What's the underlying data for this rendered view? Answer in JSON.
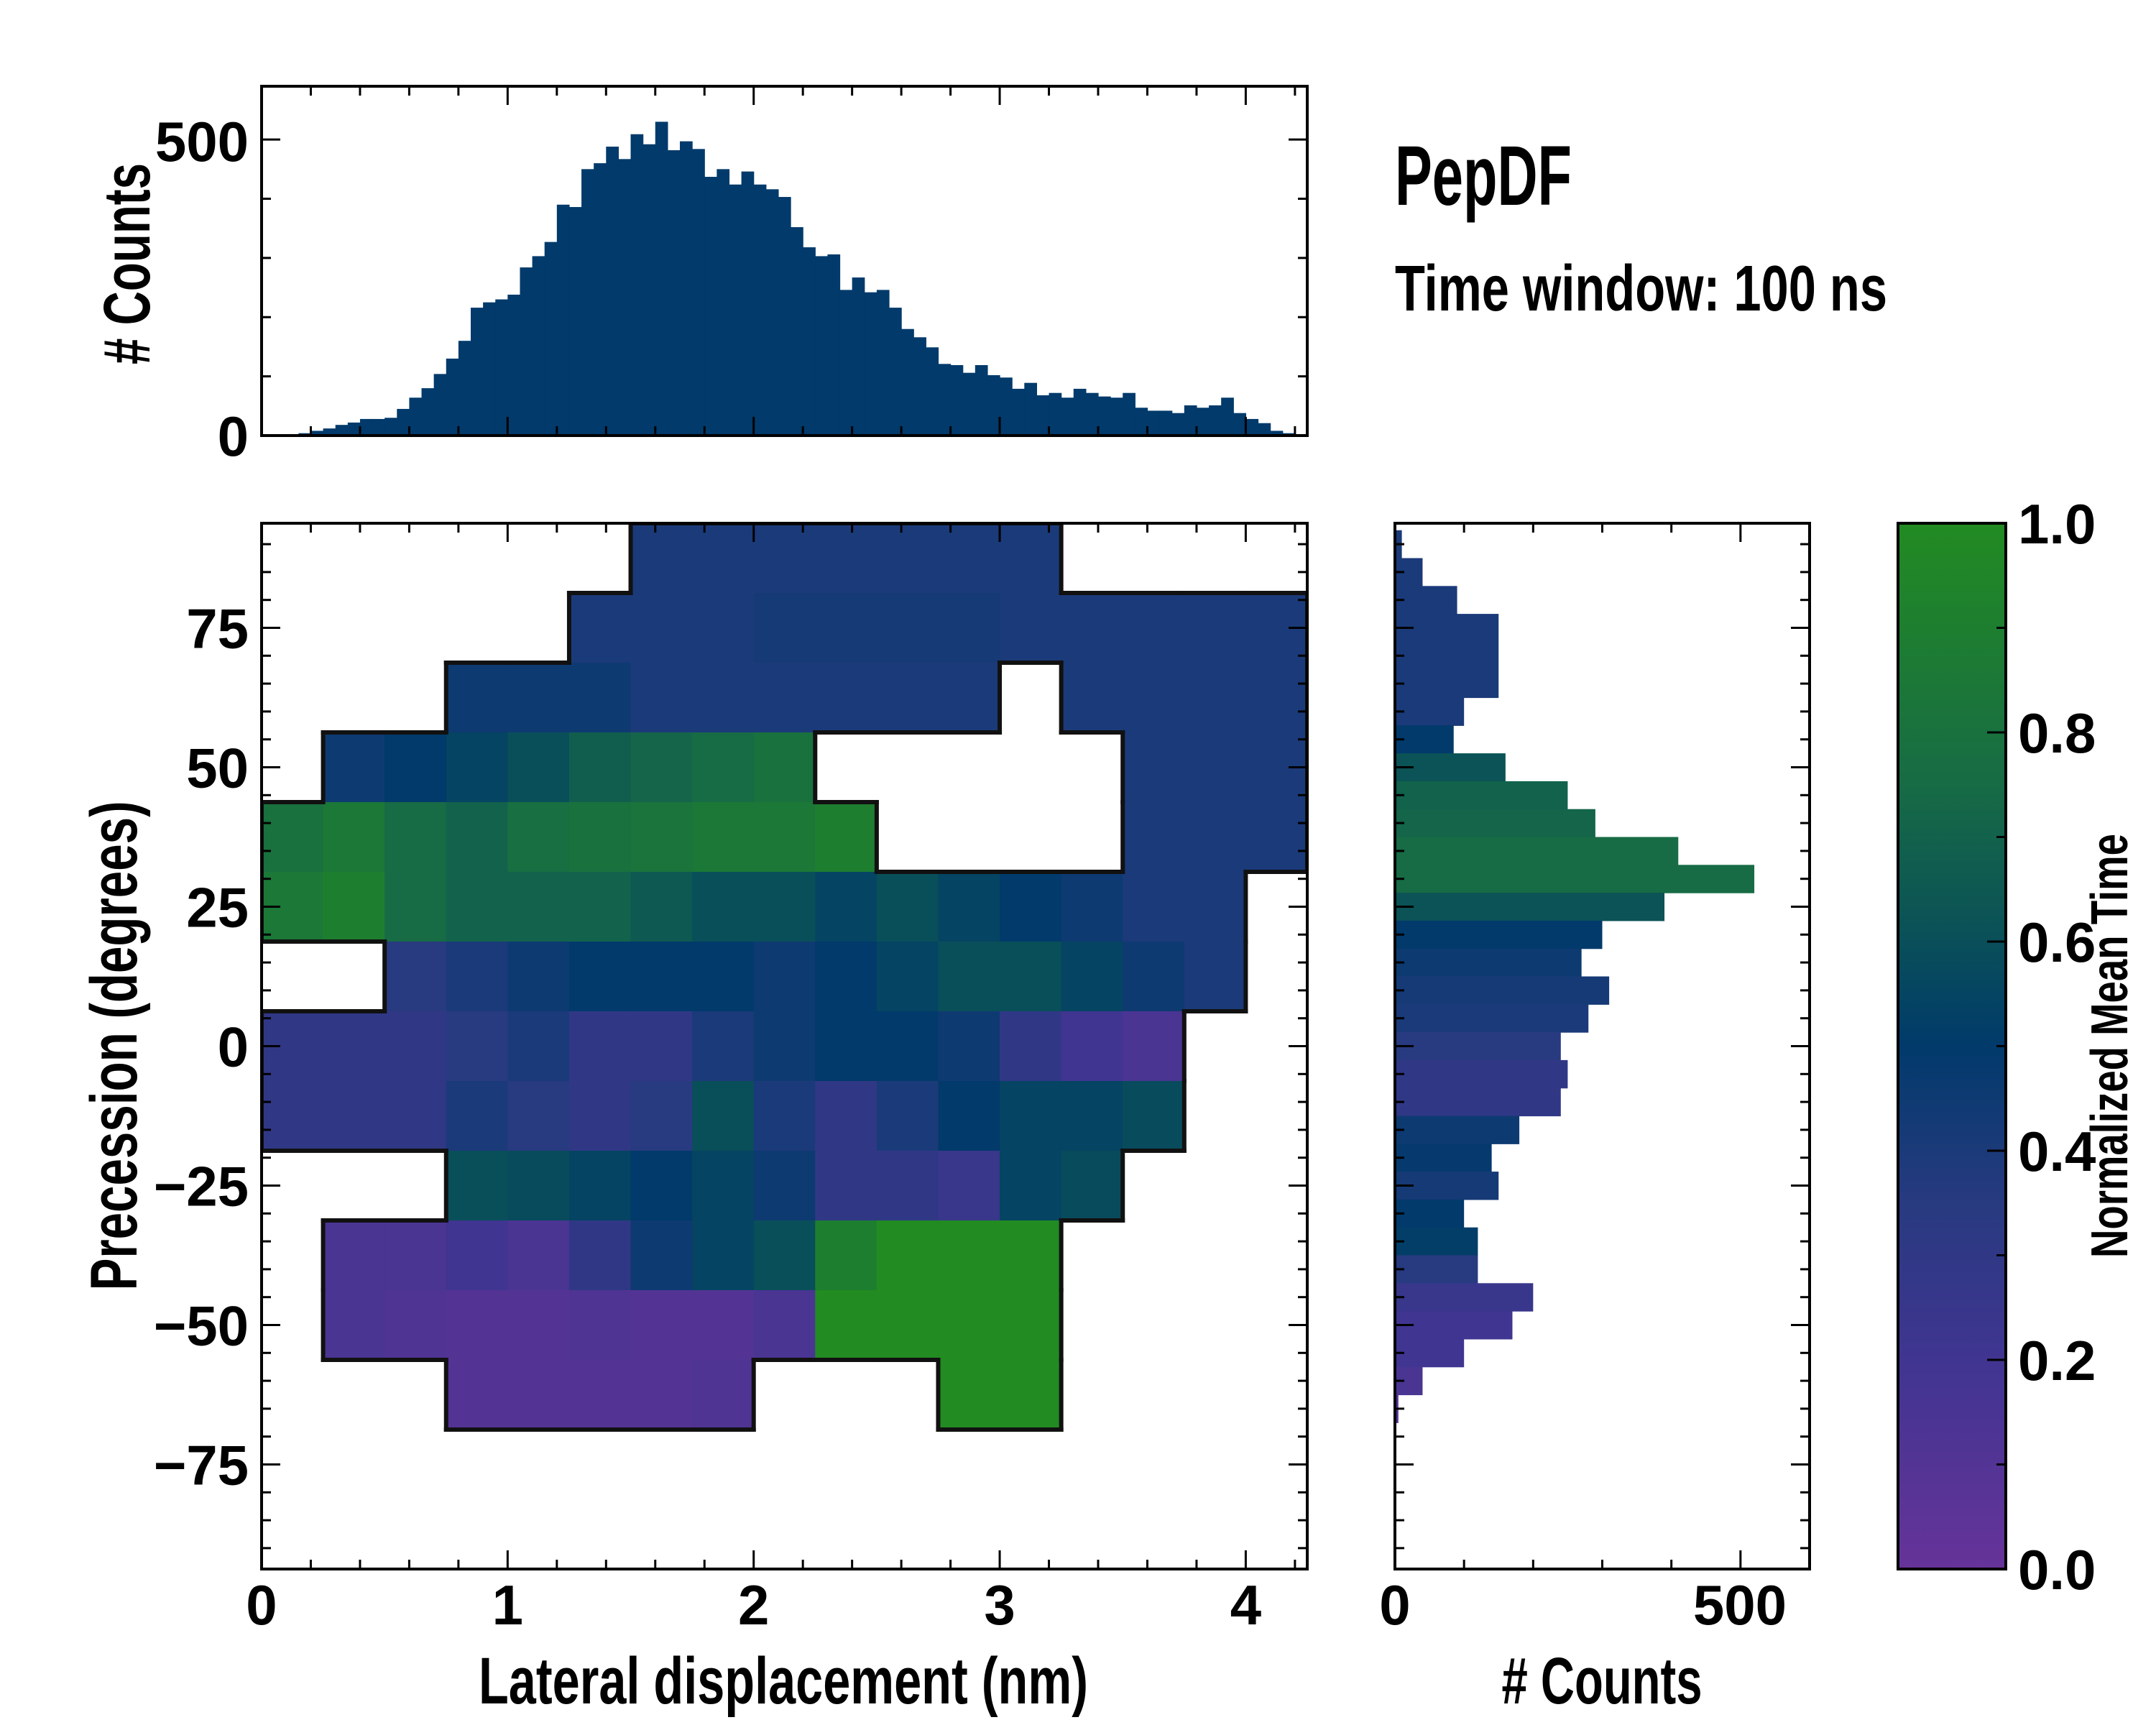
{
  "chart_data": {
    "type": "heatmap",
    "title": "PepDF",
    "subtitle": "Time window: 100 ns",
    "colormap": {
      "stops": [
        [
          0.0,
          "#663399"
        ],
        [
          0.2,
          "#403591"
        ],
        [
          0.35,
          "#283a80"
        ],
        [
          0.5,
          "#013a6b"
        ],
        [
          0.62,
          "#0b5356"
        ],
        [
          0.75,
          "#176b45"
        ],
        [
          1.0,
          "#228b22"
        ]
      ]
    },
    "main": {
      "xlabel": "Lateral displacement (nm)",
      "ylabel": "Precession (degrees)",
      "xlim": [
        0,
        4.25
      ],
      "ylim": [
        -93.75,
        93.75
      ],
      "xticks": [
        0,
        1,
        2,
        3,
        4
      ],
      "xtick_labels": [
        "0",
        "1",
        "2",
        "3",
        "4"
      ],
      "yticks": [
        75,
        50,
        25,
        0,
        -25,
        -50,
        -75
      ],
      "ytick_labels": [
        "75",
        "50",
        "25",
        "0",
        "−25",
        "−50",
        "−75"
      ],
      "grid_x_step": 0.25,
      "grid_y_step": 12.5,
      "grid_y_top": 93.75,
      "mean_time_grid": [
        [
          null,
          null,
          null,
          null,
          null,
          null,
          0.4,
          0.4,
          0.4,
          0.4,
          0.4,
          0.4,
          0.4,
          null,
          null,
          null,
          null
        ],
        [
          null,
          null,
          null,
          null,
          null,
          0.4,
          0.4,
          0.4,
          0.42,
          0.42,
          0.42,
          0.42,
          0.4,
          0.4,
          0.4,
          0.4,
          0.4
        ],
        [
          null,
          null,
          null,
          0.45,
          0.45,
          0.45,
          0.4,
          0.4,
          0.4,
          0.4,
          0.4,
          0.4,
          null,
          0.4,
          0.4,
          0.4,
          0.4
        ],
        [
          null,
          0.45,
          0.5,
          0.55,
          0.6,
          0.68,
          0.72,
          0.75,
          0.8,
          null,
          null,
          null,
          null,
          null,
          0.4,
          0.4,
          0.4
        ],
        [
          0.8,
          0.85,
          0.75,
          0.7,
          0.78,
          0.8,
          0.82,
          0.85,
          0.85,
          0.9,
          null,
          null,
          null,
          null,
          0.4,
          0.4,
          0.4
        ],
        [
          0.85,
          0.9,
          0.75,
          0.7,
          0.7,
          0.7,
          0.65,
          0.6,
          0.6,
          0.55,
          0.6,
          0.55,
          0.5,
          0.45,
          0.4,
          0.4,
          null
        ],
        [
          null,
          null,
          0.35,
          0.4,
          0.45,
          0.5,
          0.5,
          0.5,
          0.45,
          0.5,
          0.55,
          0.6,
          0.6,
          0.55,
          0.45,
          0.4,
          null
        ],
        [
          0.3,
          0.3,
          0.3,
          0.35,
          0.4,
          0.3,
          0.3,
          0.4,
          0.45,
          0.5,
          0.5,
          0.45,
          0.3,
          0.2,
          0.15,
          null,
          null
        ],
        [
          0.3,
          0.3,
          0.3,
          0.4,
          0.35,
          0.3,
          0.35,
          0.6,
          0.4,
          0.3,
          0.4,
          0.5,
          0.55,
          0.55,
          0.58,
          null,
          null
        ],
        [
          null,
          null,
          null,
          0.6,
          0.58,
          0.55,
          0.5,
          0.55,
          0.45,
          0.3,
          0.3,
          0.25,
          0.55,
          0.58,
          null,
          null,
          null
        ],
        [
          null,
          0.15,
          0.15,
          0.2,
          0.15,
          0.3,
          0.45,
          0.55,
          0.6,
          0.9,
          1.0,
          1.0,
          1.0,
          null,
          null,
          null,
          null
        ],
        [
          null,
          0.15,
          0.12,
          0.1,
          0.1,
          0.12,
          0.1,
          0.1,
          0.15,
          1.0,
          1.0,
          1.0,
          1.0,
          null,
          null,
          null,
          null
        ],
        [
          null,
          null,
          null,
          0.1,
          0.1,
          0.1,
          0.1,
          0.12,
          null,
          null,
          null,
          1.0,
          1.0,
          null,
          null,
          null,
          null
        ]
      ]
    },
    "top_hist": {
      "type": "bar",
      "ylabel": "# Counts",
      "ylim": [
        0,
        590
      ],
      "yticks": [
        0,
        500
      ],
      "ytick_labels": [
        "0",
        "500"
      ],
      "bin_start": 0,
      "bin_width": 0.05,
      "mean_time": 0.5,
      "counts": [
        0,
        1,
        2,
        4,
        8,
        12,
        18,
        22,
        28,
        28,
        30,
        45,
        64,
        80,
        104,
        130,
        160,
        216,
        225,
        230,
        238,
        284,
        303,
        327,
        390,
        386,
        450,
        460,
        488,
        467,
        509,
        492,
        530,
        482,
        497,
        484,
        437,
        450,
        424,
        446,
        424,
        416,
        403,
        352,
        318,
        303,
        306,
        246,
        267,
        242,
        246,
        216,
        180,
        166,
        149,
        121,
        119,
        106,
        119,
        102,
        98,
        79,
        89,
        68,
        72,
        64,
        79,
        72,
        66,
        64,
        72,
        47,
        42,
        42,
        38,
        51,
        47,
        51,
        64,
        38,
        28,
        21,
        8,
        4,
        2
      ]
    },
    "right_hist": {
      "type": "bar",
      "xlabel": "# Counts",
      "xlim": [
        0,
        600
      ],
      "xticks": [
        0,
        500
      ],
      "xtick_labels": [
        "0",
        "500"
      ],
      "bin_centers": [
        90,
        85,
        80,
        75,
        70,
        65,
        60,
        55,
        50,
        45,
        40,
        35,
        30,
        25,
        20,
        15,
        10,
        5,
        0,
        -5,
        -10,
        -15,
        -20,
        -25,
        -30,
        -35,
        -40,
        -45,
        -50,
        -55,
        -60,
        -65
      ],
      "bin_height": 5,
      "counts": [
        10,
        40,
        90,
        150,
        150,
        150,
        100,
        85,
        160,
        250,
        290,
        410,
        520,
        390,
        300,
        270,
        310,
        280,
        240,
        250,
        240,
        180,
        140,
        150,
        100,
        120,
        120,
        200,
        170,
        100,
        40,
        5
      ],
      "mean_time": [
        0.4,
        0.4,
        0.4,
        0.4,
        0.4,
        0.4,
        0.4,
        0.5,
        0.62,
        0.7,
        0.72,
        0.75,
        0.75,
        0.62,
        0.5,
        0.45,
        0.42,
        0.4,
        0.35,
        0.3,
        0.3,
        0.45,
        0.48,
        0.42,
        0.5,
        0.52,
        0.35,
        0.25,
        0.2,
        0.2,
        0.15,
        0.12
      ]
    },
    "colorbar": {
      "label": "Normalized Mean Time",
      "range": [
        0,
        1
      ],
      "ticks": [
        0,
        0.2,
        0.4,
        0.6,
        0.8,
        1.0
      ],
      "tick_labels": [
        "0.0",
        "0.2",
        "0.4",
        "0.6",
        "0.8",
        "1.0"
      ]
    }
  }
}
